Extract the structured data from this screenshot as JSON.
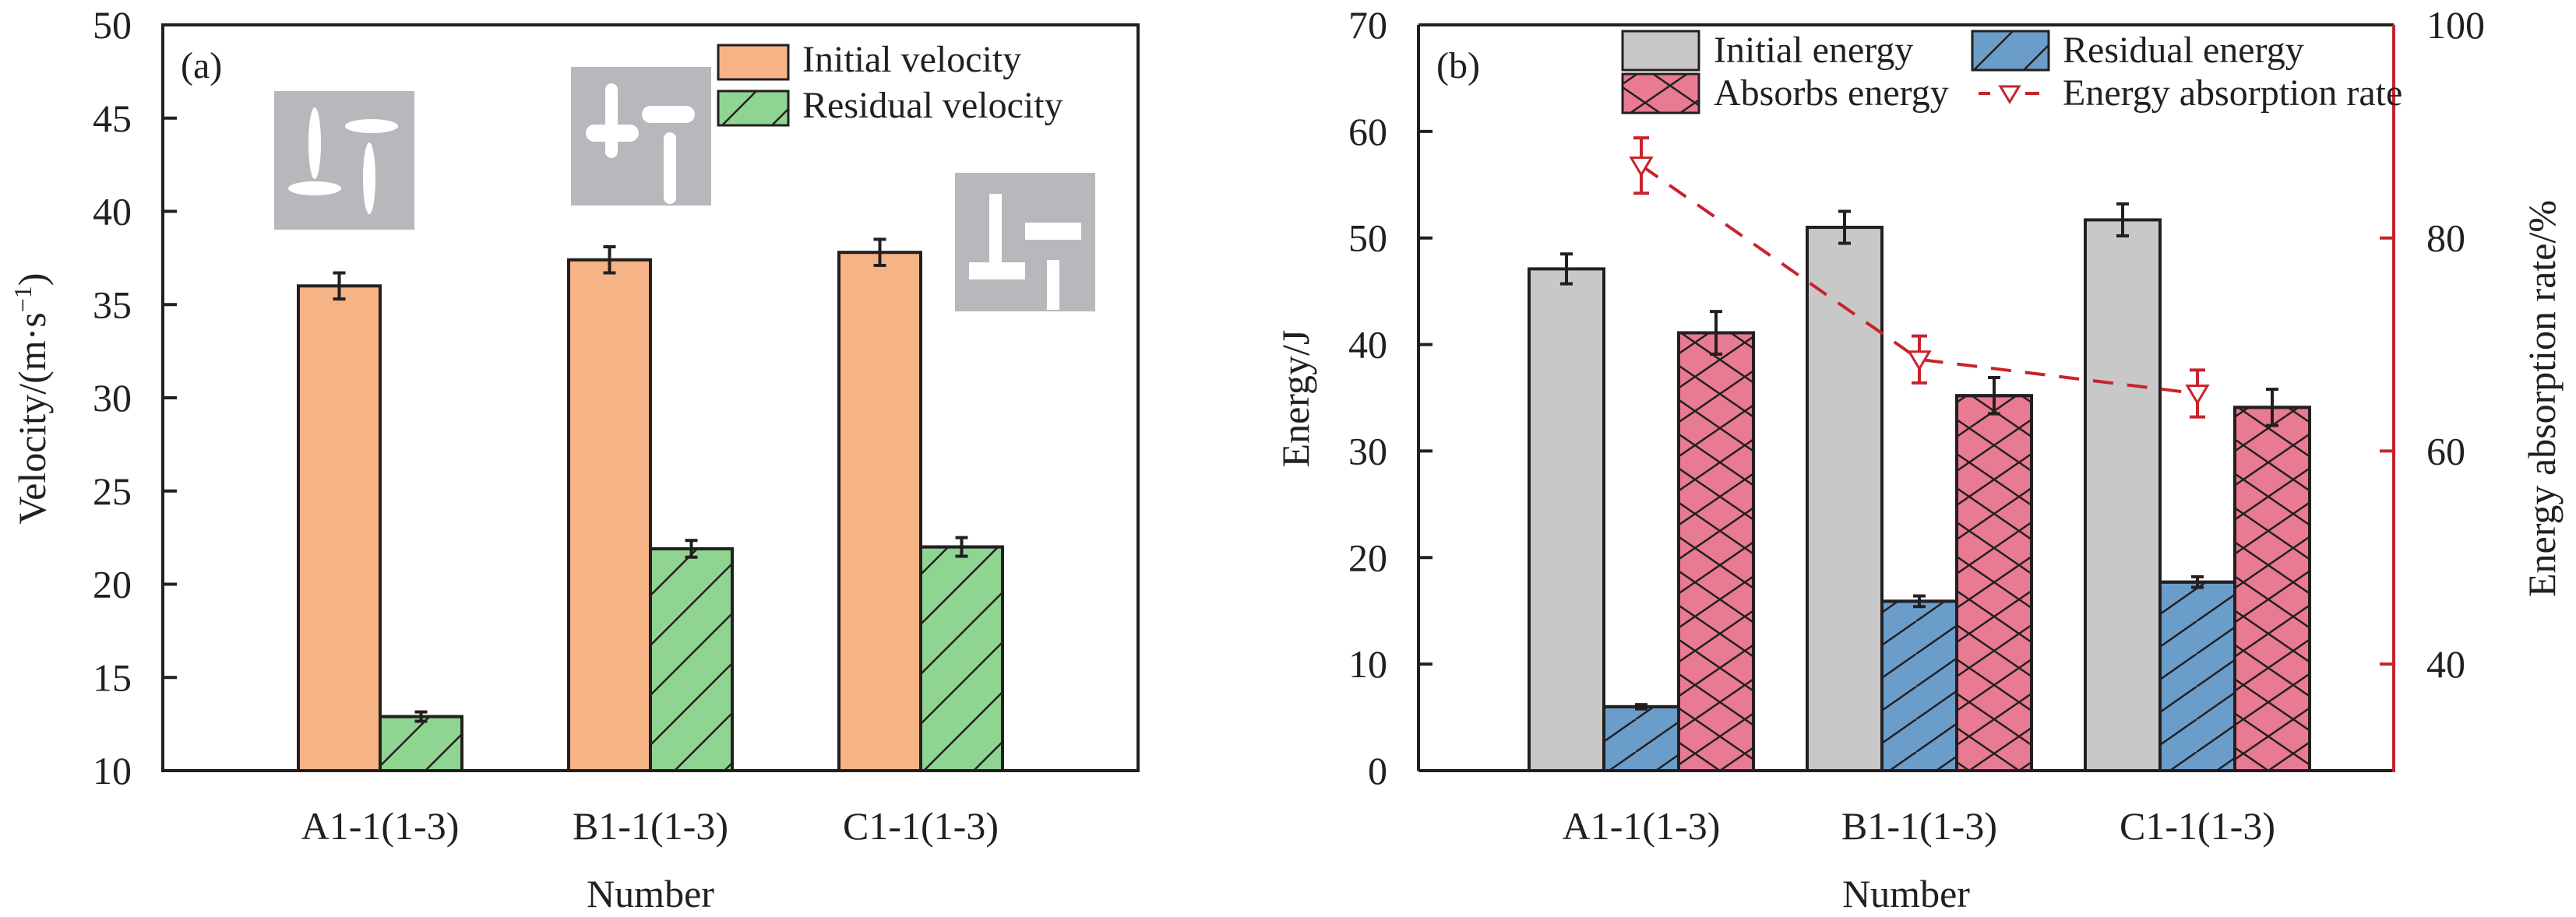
{
  "chart_data": [
    {
      "type": "bar",
      "panel_label": "(a)",
      "categories": [
        "A1-1(1-3)",
        "B1-1(1-3)",
        "C1-1(1-3)"
      ],
      "xlabel": "Number",
      "ylabel": "Velocity/(m·s⁻¹)",
      "ylabel_main": "Velocity/(m·s",
      "ylabel_sup": "−1",
      "ylabel_close": ")",
      "ylim": [
        10,
        50
      ],
      "yticks": [
        10,
        15,
        20,
        25,
        30,
        35,
        40,
        45,
        50
      ],
      "grid": false,
      "legend_position": "top-right",
      "series": [
        {
          "name": "Initial velocity",
          "values": [
            36.0,
            37.4,
            37.8
          ],
          "errors": [
            0.7,
            0.7,
            0.7
          ],
          "color": "#f5b386",
          "hatch": "none"
        },
        {
          "name": "Residual velocity",
          "values": [
            12.9,
            21.9,
            22.0
          ],
          "errors": [
            0.25,
            0.45,
            0.5
          ],
          "color": "#8fd591",
          "hatch": "diagonal"
        }
      ],
      "insets": [
        {
          "category": "A1-1(1-3)",
          "shape": "ellipse-slots",
          "color": "#b6b8bb"
        },
        {
          "category": "B1-1(1-3)",
          "shape": "rounded-slots",
          "color": "#b6b8bb"
        },
        {
          "category": "C1-1(1-3)",
          "shape": "rectangular-slots",
          "color": "#b6b8bb"
        }
      ]
    },
    {
      "type": "bar",
      "panel_label": "(b)",
      "categories": [
        "A1-1(1-3)",
        "B1-1(1-3)",
        "C1-1(1-3)"
      ],
      "xlabel": "Number",
      "ylabel": "Energy/J",
      "y2label": "Energy absorption rate/%",
      "ylim": [
        0,
        70
      ],
      "yticks": [
        0,
        10,
        20,
        30,
        40,
        50,
        60,
        70
      ],
      "y2lim": [
        30,
        100
      ],
      "y2ticks": [
        40,
        60,
        80,
        100
      ],
      "y2color": "#c8232c",
      "grid": false,
      "legend_position": "top",
      "series": [
        {
          "name": "Initial energy",
          "values": [
            47.1,
            51.0,
            51.7
          ],
          "errors": [
            1.4,
            1.5,
            1.5
          ],
          "color": "#c8c8c8",
          "hatch": "none",
          "axis": "left"
        },
        {
          "name": "Residual energy",
          "values": [
            6.0,
            15.9,
            17.7
          ],
          "errors": [
            0.2,
            0.5,
            0.5
          ],
          "color": "#6b9dca",
          "hatch": "diagonal",
          "axis": "left"
        },
        {
          "name": "Absorbs energy",
          "values": [
            41.1,
            35.2,
            34.1
          ],
          "errors": [
            2.0,
            1.7,
            1.7
          ],
          "color": "#e87a92",
          "hatch": "cross",
          "axis": "left"
        },
        {
          "name": "Energy absorption rate",
          "values": [
            86.8,
            68.6,
            65.4
          ],
          "errors": [
            2.6,
            2.2,
            2.2
          ],
          "color": "#c8232c",
          "style": "dashed-line-down-triangle",
          "axis": "right"
        }
      ]
    }
  ]
}
